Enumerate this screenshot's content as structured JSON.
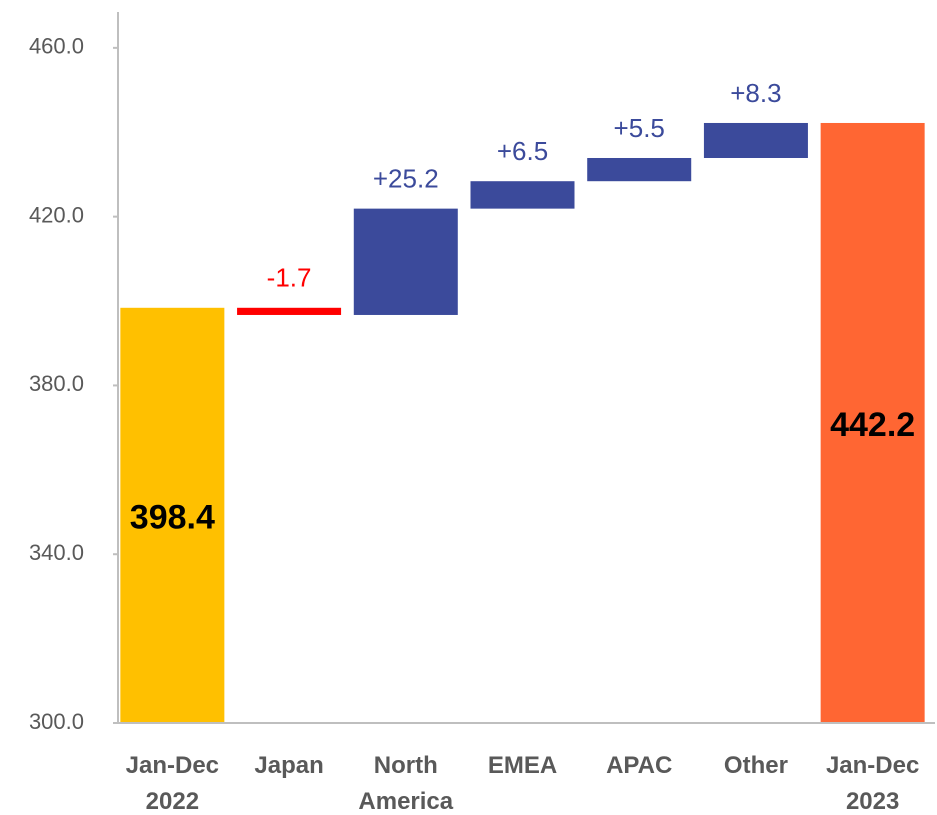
{
  "chart_data": {
    "type": "waterfall",
    "categories": [
      [
        "Jan-Dec",
        "2022"
      ],
      [
        "Japan"
      ],
      [
        "North",
        "America"
      ],
      [
        "EMEA"
      ],
      [
        "APAC"
      ],
      [
        "Other"
      ],
      [
        "Jan-Dec",
        "2023"
      ]
    ],
    "values": [
      398.4,
      -1.7,
      25.2,
      6.5,
      5.5,
      8.3,
      442.2
    ],
    "value_labels": [
      "398.4",
      "-1.7",
      "+25.2",
      "+6.5",
      "+5.5",
      "+8.3",
      "442.2"
    ],
    "measures": [
      "absolute",
      "relative",
      "relative",
      "relative",
      "relative",
      "relative",
      "total"
    ],
    "colors": [
      "#ffc000",
      "#ff0000",
      "#3b4a9b",
      "#3b4a9b",
      "#3b4a9b",
      "#3b4a9b",
      "#ff6633"
    ],
    "ylim": [
      300,
      468.5
    ],
    "yticks": [
      {
        "value": 300,
        "label": "300.0"
      },
      {
        "value": 340,
        "label": "340.0"
      },
      {
        "value": 380,
        "label": "380.0"
      },
      {
        "value": 420,
        "label": "420.0"
      },
      {
        "value": 460,
        "label": "460.0"
      }
    ]
  }
}
